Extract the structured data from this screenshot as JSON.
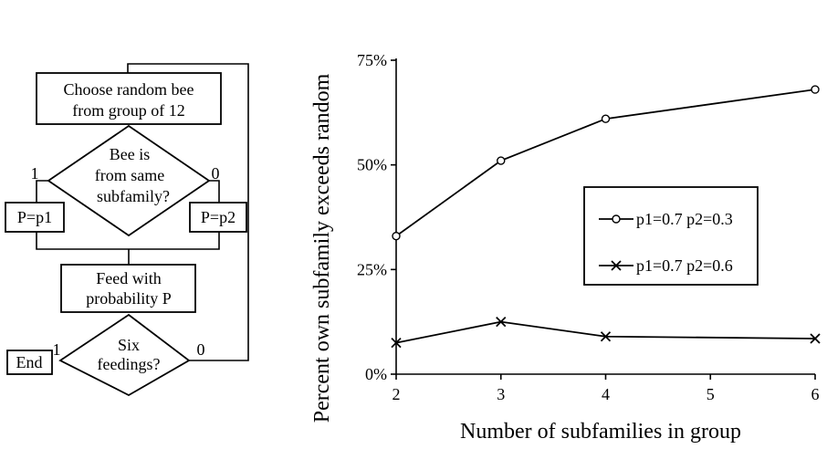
{
  "flowchart": {
    "choose_line1": "Choose random bee",
    "choose_line2": "from group of 12",
    "decision1_line1": "Bee is",
    "decision1_line2": "from same",
    "decision1_line3": "subfamily?",
    "decision1_yes": "1",
    "decision1_no": "0",
    "box_p1": "P=p1",
    "box_p2": "P=p2",
    "feed_line1": "Feed with",
    "feed_line2": "probability P",
    "decision2_line1": "Six",
    "decision2_line2": "feedings?",
    "decision2_yes": "1",
    "decision2_no": "0",
    "end_label": "End"
  },
  "chart_data": {
    "type": "line",
    "title": "",
    "xlabel": "Number of subfamilies in group",
    "ylabel": "Percent own subfamily exceeds random",
    "xlim": [
      2,
      6
    ],
    "ylim": [
      0,
      75
    ],
    "xticks": [
      2,
      3,
      4,
      5,
      6
    ],
    "yticks": [
      {
        "value": 0,
        "label": "0%"
      },
      {
        "value": 25,
        "label": "25%"
      },
      {
        "value": 50,
        "label": "50%"
      },
      {
        "value": 75,
        "label": "75%"
      }
    ],
    "grid": false,
    "legend_position": "right",
    "series": [
      {
        "name": "p1=0.7 p2=0.3",
        "marker": "circle",
        "color": "#000000",
        "x": [
          2,
          3,
          4,
          6
        ],
        "y": [
          33,
          51,
          61,
          68
        ]
      },
      {
        "name": "p1=0.7 p2=0.6",
        "marker": "x",
        "color": "#000000",
        "x": [
          2,
          3,
          4,
          6
        ],
        "y": [
          7.5,
          12.5,
          9,
          8.5
        ]
      }
    ]
  }
}
